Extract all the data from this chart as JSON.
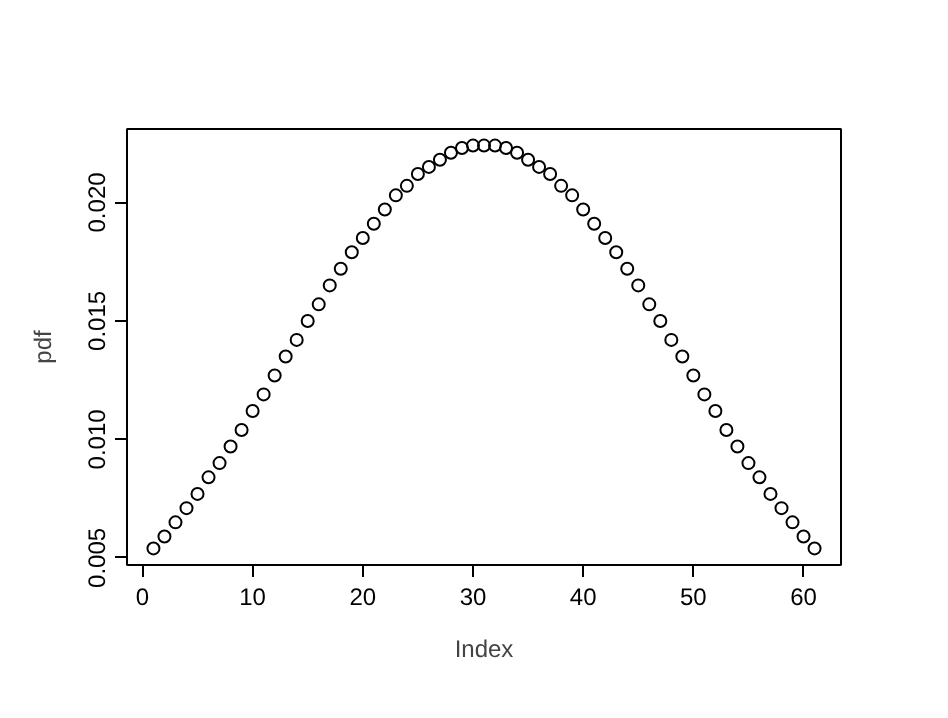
{
  "chart_data": {
    "type": "scatter",
    "xlabel": "Index",
    "ylabel": "pdf",
    "x": [
      1,
      2,
      3,
      4,
      5,
      6,
      7,
      8,
      9,
      10,
      11,
      12,
      13,
      14,
      15,
      16,
      17,
      18,
      19,
      20,
      21,
      22,
      23,
      24,
      25,
      26,
      27,
      28,
      29,
      30,
      31,
      32,
      33,
      34,
      35,
      36,
      37,
      38,
      39,
      40,
      41,
      42,
      43,
      44,
      45,
      46,
      47,
      48,
      49,
      50,
      51,
      52,
      53,
      54,
      55,
      56,
      57,
      58,
      59,
      60,
      61
    ],
    "series": [
      {
        "color": "#000000",
        "values": [
          0.0054,
          0.0059,
          0.0065,
          0.0071,
          0.0077,
          0.0084,
          0.009,
          0.0097,
          0.0104,
          0.0112,
          0.0119,
          0.0127,
          0.0135,
          0.0142,
          0.015,
          0.0157,
          0.0165,
          0.0172,
          0.0179,
          0.0185,
          0.0191,
          0.0197,
          0.0203,
          0.0207,
          0.0212,
          0.0215,
          0.0218,
          0.0221,
          0.0223,
          0.0224,
          0.0224,
          0.0224,
          0.0223,
          0.0221,
          0.0218,
          0.0215,
          0.0212,
          0.0207,
          0.0203,
          0.0197,
          0.0191,
          0.0185,
          0.0179,
          0.0172,
          0.0165,
          0.0157,
          0.015,
          0.0142,
          0.0135,
          0.0127,
          0.0119,
          0.0112,
          0.0104,
          0.0097,
          0.009,
          0.0084,
          0.0077,
          0.0071,
          0.0065,
          0.0059,
          0.0054
        ]
      }
    ],
    "xlim": [
      -1.4,
      63.4
    ],
    "ylim": [
      0.0047,
      0.0231
    ],
    "xticks": [
      0,
      10,
      20,
      30,
      40,
      50,
      60
    ],
    "yticks": [
      {
        "value": 0.005,
        "label": "0.005"
      },
      {
        "value": 0.01,
        "label": "0.010"
      },
      {
        "value": 0.015,
        "label": "0.015"
      },
      {
        "value": 0.02,
        "label": "0.020"
      }
    ],
    "grid": false,
    "marker": "circle"
  }
}
